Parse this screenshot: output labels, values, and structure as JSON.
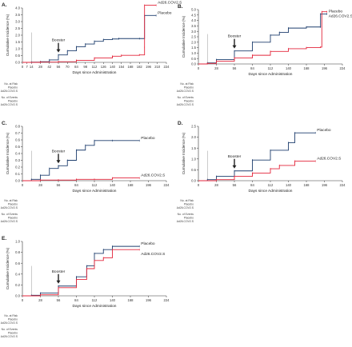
{
  "colors": {
    "placebo": "#1f3f6e",
    "vaccine": "#e3263b",
    "axis": "#333333",
    "annot": "#222222"
  },
  "chart_data": [
    {
      "panel": "A.",
      "type": "line",
      "ylabel": "Cumulative Incidence (%)",
      "xlabel": "Days since Administration",
      "yticks": [
        "0.0",
        "0.5",
        "1.0",
        "1.5",
        "2.0",
        "2.5",
        "3.0",
        "3.5",
        "4.0"
      ],
      "ylim": [
        0,
        4
      ],
      "xticks": [
        "0",
        "7",
        "14",
        "28",
        "42",
        "56",
        "70",
        "84",
        "98",
        "112",
        "126",
        "140",
        "154",
        "168",
        "182",
        "196",
        "210",
        "224"
      ],
      "xlim": [
        0,
        224
      ],
      "arrow": {
        "label": "Booster",
        "x": 56
      },
      "series": [
        {
          "name": "Placebo",
          "key": "placebo",
          "points": [
            [
              0,
              0
            ],
            [
              14,
              0.02
            ],
            [
              28,
              0.05
            ],
            [
              42,
              0.18
            ],
            [
              56,
              0.55
            ],
            [
              70,
              0.85
            ],
            [
              84,
              1.15
            ],
            [
              98,
              1.35
            ],
            [
              112,
              1.55
            ],
            [
              126,
              1.68
            ],
            [
              140,
              1.72
            ],
            [
              150,
              1.75
            ],
            [
              182,
              1.75
            ],
            [
              190,
              3.45
            ],
            [
              208,
              3.45
            ]
          ]
        },
        {
          "name": "Ad26.COV2.S",
          "key": "vaccine",
          "points": [
            [
              0,
              0
            ],
            [
              28,
              0.02
            ],
            [
              56,
              0.05
            ],
            [
              84,
              0.15
            ],
            [
              112,
              0.32
            ],
            [
              140,
              0.45
            ],
            [
              154,
              0.52
            ],
            [
              182,
              0.55
            ],
            [
              190,
              1.1
            ],
            [
              190,
              4.2
            ],
            [
              208,
              4.2
            ]
          ]
        }
      ],
      "risk_rows": [
        "No. at Risk",
        "Placebo",
        "Ad26.COV2.S",
        "No. of Events",
        "Placebo",
        "Ad26.COV2.S"
      ]
    },
    {
      "panel": "B.",
      "type": "line",
      "ylabel": "Cumulative Incidence (%)",
      "xlabel": "Days since Administration",
      "yticks": [
        "0.0",
        "0.5",
        "1.0",
        "1.5",
        "2.0",
        "2.5",
        "3.0",
        "3.5",
        "4.0",
        "4.5",
        "5.0"
      ],
      "ylim": [
        0,
        5
      ],
      "xticks": [
        "0",
        "28",
        "56",
        "84",
        "112",
        "140",
        "168",
        "196",
        "224"
      ],
      "xlim": [
        0,
        224
      ],
      "arrow": {
        "label": "Booster",
        "x": 56
      },
      "series": [
        {
          "name": "Placebo",
          "key": "placebo",
          "points": [
            [
              0,
              0
            ],
            [
              14,
              0.1
            ],
            [
              28,
              0.4
            ],
            [
              56,
              1.2
            ],
            [
              84,
              2.0
            ],
            [
              112,
              2.65
            ],
            [
              126,
              2.9
            ],
            [
              140,
              3.3
            ],
            [
              168,
              3.4
            ],
            [
              190,
              3.4
            ],
            [
              190,
              4.6
            ],
            [
              200,
              4.6
            ]
          ]
        },
        {
          "name": "Ad26.COV2.S",
          "key": "vaccine",
          "points": [
            [
              0,
              0
            ],
            [
              14,
              0.05
            ],
            [
              28,
              0.25
            ],
            [
              56,
              0.55
            ],
            [
              84,
              0.8
            ],
            [
              112,
              1.15
            ],
            [
              140,
              1.4
            ],
            [
              168,
              1.5
            ],
            [
              190,
              1.55
            ],
            [
              192,
              4.8
            ],
            [
              200,
              4.8
            ]
          ]
        }
      ],
      "risk_rows": [
        "No. at Risk",
        "Placebo",
        "Ad26.COV2.S",
        "No. of Events",
        "Placebo",
        "Ad26.COV2.S"
      ]
    },
    {
      "panel": "C.",
      "type": "line",
      "ylabel": "Cumulative Incidence (%)",
      "xlabel": "Days since Administration",
      "yticks": [
        "0.0",
        "0.1",
        "0.2",
        "0.3",
        "0.4",
        "0.5",
        "0.6",
        "0.7",
        "0.8"
      ],
      "ylim": [
        0,
        0.8
      ],
      "xticks": [
        "0",
        "28",
        "56",
        "84",
        "112",
        "140",
        "168",
        "196",
        "224"
      ],
      "xlim": [
        0,
        224
      ],
      "arrow": {
        "label": "Booster",
        "x": 56
      },
      "series": [
        {
          "name": "Placebo",
          "key": "placebo",
          "points": [
            [
              0,
              0
            ],
            [
              14,
              0.02
            ],
            [
              28,
              0.08
            ],
            [
              42,
              0.18
            ],
            [
              56,
              0.22
            ],
            [
              70,
              0.3
            ],
            [
              84,
              0.45
            ],
            [
              98,
              0.52
            ],
            [
              112,
              0.59
            ],
            [
              140,
              0.59
            ],
            [
              182,
              0.59
            ]
          ]
        },
        {
          "name": "Ad26.COV2.S",
          "key": "vaccine",
          "points": [
            [
              0,
              0
            ],
            [
              28,
              0.01
            ],
            [
              56,
              0.01
            ],
            [
              84,
              0.02
            ],
            [
              112,
              0.02
            ],
            [
              140,
              0.04
            ],
            [
              182,
              0.04
            ]
          ]
        }
      ],
      "risk_rows": [
        "No. at Risk",
        "Placebo",
        "Ad26.COV2.S",
        "No. of Events",
        "Placebo",
        "Ad26.COV2.S"
      ]
    },
    {
      "panel": "D.",
      "type": "line",
      "ylabel": "Cumulative Incidence (%)",
      "xlabel": "Days since Administration",
      "yticks": [
        "0.0",
        "0.5",
        "1.0",
        "1.5",
        "2.0",
        "2.5"
      ],
      "ylim": [
        0,
        2.5
      ],
      "xticks": [
        "0",
        "28",
        "56",
        "84",
        "112",
        "140",
        "168",
        "196",
        "224"
      ],
      "xlim": [
        0,
        224
      ],
      "arrow": {
        "label": "Booster",
        "x": 56
      },
      "series": [
        {
          "name": "Placebo",
          "key": "placebo",
          "points": [
            [
              0,
              0
            ],
            [
              14,
              0.05
            ],
            [
              28,
              0.2
            ],
            [
              56,
              0.45
            ],
            [
              84,
              0.95
            ],
            [
              112,
              1.4
            ],
            [
              140,
              1.75
            ],
            [
              150,
              2.2
            ],
            [
              182,
              2.2
            ]
          ]
        },
        {
          "name": "Ad26.COV2.S",
          "key": "vaccine",
          "points": [
            [
              0,
              0
            ],
            [
              28,
              0.05
            ],
            [
              56,
              0.2
            ],
            [
              84,
              0.35
            ],
            [
              112,
              0.55
            ],
            [
              126,
              0.7
            ],
            [
              150,
              0.9
            ],
            [
              182,
              0.9
            ]
          ]
        }
      ],
      "risk_rows": [
        "No. at Risk",
        "Placebo",
        "Ad26.COV2.S",
        "No. of Events",
        "Placebo",
        "Ad26.COV2.S"
      ]
    },
    {
      "panel": "E.",
      "type": "line",
      "ylabel": "Cumulative Incidence (%)",
      "xlabel": "Days since Administration",
      "yticks": [
        "0.0",
        "0.2",
        "0.4",
        "0.6",
        "0.8",
        "1.0"
      ],
      "ylim": [
        0,
        1.0
      ],
      "xticks": [
        "0",
        "28",
        "56",
        "84",
        "112",
        "140",
        "168",
        "196",
        "224"
      ],
      "xlim": [
        0,
        224
      ],
      "arrow": {
        "label": "Booster",
        "x": 56
      },
      "series": [
        {
          "name": "Placebo",
          "key": "placebo",
          "points": [
            [
              0,
              0
            ],
            [
              14,
              0.01
            ],
            [
              28,
              0.05
            ],
            [
              56,
              0.18
            ],
            [
              84,
              0.35
            ],
            [
              100,
              0.55
            ],
            [
              112,
              0.78
            ],
            [
              126,
              0.85
            ],
            [
              140,
              0.91
            ],
            [
              182,
              0.91
            ]
          ]
        },
        {
          "name": "Ad26.COV2.S",
          "key": "vaccine",
          "points": [
            [
              0,
              0
            ],
            [
              28,
              0.02
            ],
            [
              56,
              0.15
            ],
            [
              84,
              0.3
            ],
            [
              100,
              0.5
            ],
            [
              112,
              0.65
            ],
            [
              126,
              0.7
            ],
            [
              140,
              0.85
            ],
            [
              182,
              0.85
            ]
          ]
        }
      ],
      "risk_rows": [
        "No. at Risk",
        "Placebo",
        "Ad26.COV2.S",
        "No. of Events",
        "Placebo",
        "Ad26.COV2.S"
      ]
    }
  ]
}
